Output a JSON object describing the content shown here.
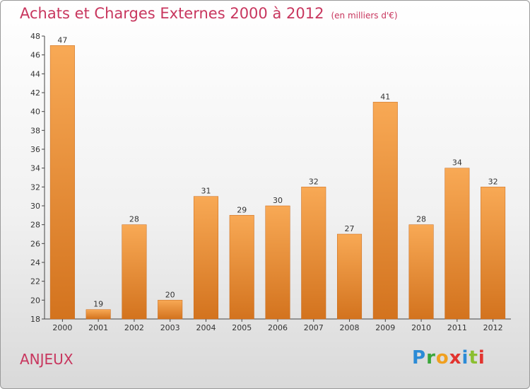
{
  "header": {
    "title": "Achats et Charges Externes 2000 à 2012",
    "subtitle": "(en milliers d'€)"
  },
  "footer": {
    "commune": "ANJEUX",
    "logo": [
      "P",
      "r",
      "o",
      "x",
      "i",
      "t",
      "i"
    ]
  },
  "colors": {
    "title": "#c8365e",
    "bar_light": "#f8a955",
    "bar_dark": "#d3731e"
  },
  "chart_data": {
    "type": "bar",
    "title": "Achats et Charges Externes 2000 à 2012",
    "subtitle": "(en milliers d'€)",
    "xlabel": "",
    "ylabel": "",
    "categories": [
      "2000",
      "2001",
      "2002",
      "2003",
      "2004",
      "2005",
      "2006",
      "2007",
      "2008",
      "2009",
      "2010",
      "2011",
      "2012"
    ],
    "values": [
      47,
      19,
      28,
      20,
      31,
      29,
      30,
      32,
      27,
      41,
      28,
      34,
      32
    ],
    "ylim": [
      18,
      48
    ],
    "yticks": [
      18,
      20,
      22,
      24,
      26,
      28,
      30,
      32,
      34,
      36,
      38,
      40,
      42,
      44,
      46,
      48
    ],
    "grid": false,
    "legend": "none"
  }
}
